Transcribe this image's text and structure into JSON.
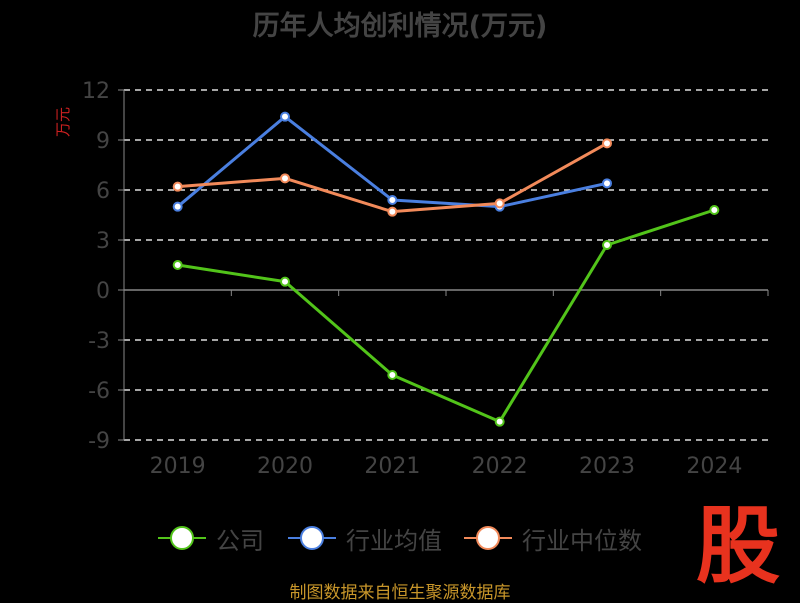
{
  "chart_data": {
    "type": "line",
    "title": "历年人均创利情况(万元)",
    "ylabel": "万元",
    "xlabel": "",
    "categories": [
      "2019",
      "2020",
      "2021",
      "2022",
      "2023",
      "2024"
    ],
    "ylim": [
      -9,
      12
    ],
    "yticks": [
      12,
      9,
      6,
      3,
      0,
      -3,
      -6,
      -9
    ],
    "grid": true,
    "legend_position": "bottom",
    "series": [
      {
        "name": "公司",
        "color": "#52c41a",
        "values": [
          1.5,
          0.5,
          -5.1,
          -7.9,
          2.7,
          4.8
        ]
      },
      {
        "name": "行业均值",
        "color": "#4a7fe0",
        "values": [
          5.0,
          10.4,
          5.4,
          5.0,
          6.4,
          null
        ]
      },
      {
        "name": "行业中位数",
        "color": "#f28a5a",
        "values": [
          6.2,
          6.7,
          4.7,
          5.2,
          8.8,
          null
        ]
      }
    ]
  },
  "source": "制图数据来自恒生聚源数据库",
  "logo_text": "股"
}
